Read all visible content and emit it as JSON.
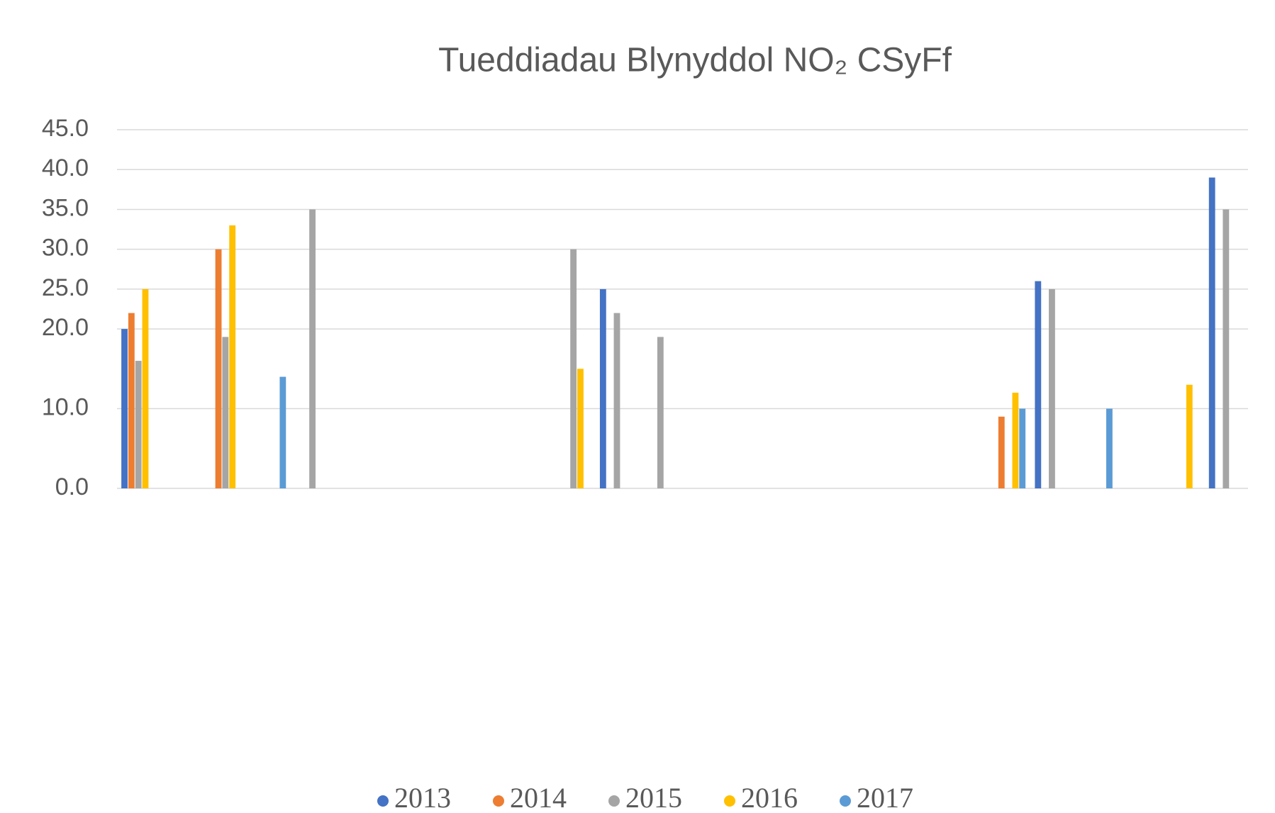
{
  "chart_data": {
    "type": "bar",
    "title": "Tueddiadau Blynyddol NO₂ CSyFf",
    "categories": [
      null,
      null,
      null,
      null,
      null,
      null,
      null,
      null,
      null,
      null,
      null,
      null,
      null,
      null,
      null,
      null,
      null,
      null,
      null,
      null,
      null,
      null,
      null,
      null,
      null,
      null
    ],
    "series": [
      {
        "name": "2013",
        "color": "#4472c4",
        "values": [
          20,
          null,
          null,
          null,
          null,
          null,
          null,
          null,
          null,
          null,
          null,
          25,
          null,
          null,
          null,
          null,
          null,
          null,
          null,
          null,
          null,
          26,
          null,
          null,
          null,
          39
        ]
      },
      {
        "name": "2014",
        "color": "#ed7d31",
        "values": [
          22,
          null,
          30,
          null,
          null,
          null,
          null,
          null,
          null,
          null,
          null,
          null,
          null,
          null,
          null,
          null,
          null,
          null,
          null,
          null,
          9,
          null,
          null,
          null,
          null,
          null
        ]
      },
      {
        "name": "2015",
        "color": "#a5a5a5",
        "values": [
          16,
          null,
          19,
          null,
          35,
          null,
          null,
          null,
          null,
          null,
          30,
          22,
          19,
          null,
          null,
          null,
          null,
          null,
          null,
          null,
          null,
          25,
          null,
          null,
          null,
          35
        ]
      },
      {
        "name": "2016",
        "color": "#ffc000",
        "values": [
          25,
          null,
          33,
          null,
          null,
          null,
          null,
          null,
          null,
          null,
          15,
          null,
          null,
          null,
          null,
          null,
          null,
          null,
          null,
          null,
          12,
          null,
          null,
          null,
          13,
          null
        ]
      },
      {
        "name": "2017",
        "color": "#5b9bd5",
        "values": [
          null,
          null,
          null,
          14,
          null,
          null,
          null,
          null,
          null,
          null,
          null,
          null,
          null,
          null,
          null,
          null,
          null,
          null,
          null,
          null,
          10,
          null,
          10,
          null,
          null,
          null
        ]
      }
    ],
    "ylim": [
      0,
      45
    ],
    "yticks": [
      {
        "value": 0,
        "label": "0.0"
      },
      {
        "value": 10,
        "label": "10.0"
      },
      {
        "value": 20,
        "label": "20.0"
      },
      {
        "value": 25,
        "label": "25.0"
      },
      {
        "value": 30,
        "label": "30.0"
      },
      {
        "value": 35,
        "label": "35.0"
      },
      {
        "value": 40,
        "label": "40.0"
      },
      {
        "value": 45,
        "label": "45.0"
      }
    ],
    "grid": true,
    "legend": "bottom"
  }
}
